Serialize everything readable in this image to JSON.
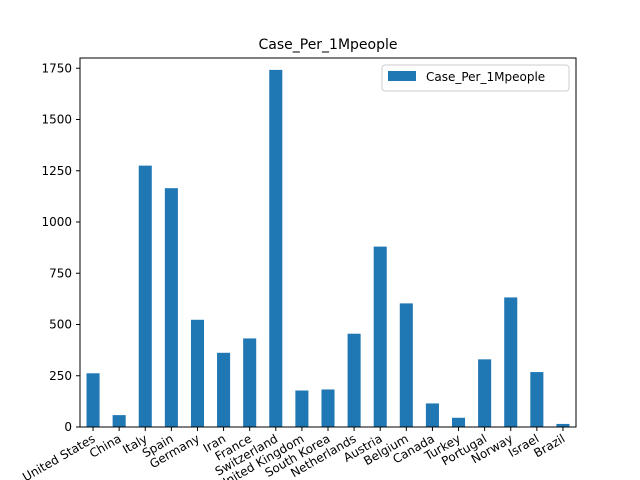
{
  "chart_data": {
    "type": "bar",
    "title": "Case_Per_1Mpeople",
    "xlabel": "",
    "ylabel": "",
    "categories": [
      "United States",
      "China",
      "Italy",
      "Spain",
      "Germany",
      "Iran",
      "France",
      "Switzerland",
      "United Kingdom",
      "South Korea",
      "Netherlands",
      "Austria",
      "Belgium",
      "Canada",
      "Turkey",
      "Portugal",
      "Norway",
      "Israel",
      "Brazil"
    ],
    "series": [
      {
        "name": "Case_Per_1Mpeople",
        "color": "#1f77b4",
        "values": [
          262,
          58,
          1275,
          1165,
          523,
          362,
          432,
          1742,
          178,
          183,
          455,
          880,
          603,
          115,
          45,
          330,
          632,
          268,
          15
        ]
      }
    ],
    "ylim": [
      0,
      1800
    ],
    "yticks": [
      0,
      250,
      500,
      750,
      1000,
      1250,
      1500,
      1750
    ],
    "legend_position": "top-right",
    "grid": false
  }
}
